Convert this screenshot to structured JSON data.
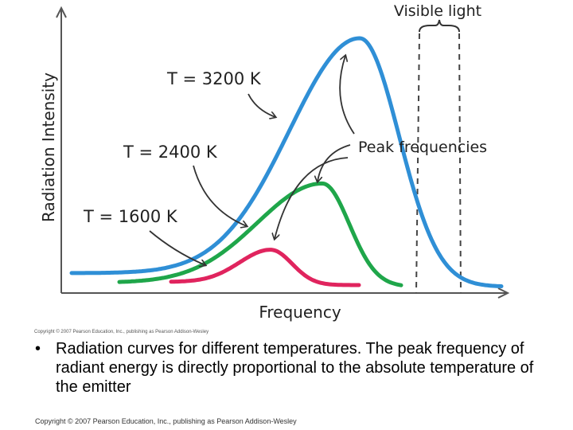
{
  "chart_data": {
    "type": "line",
    "title": "",
    "xlabel": "Frequency",
    "ylabel": "Radiation Intensity",
    "series": [
      {
        "name": "T = 3200 K",
        "color": "#2f8fd6",
        "peak": 1.0
      },
      {
        "name": "T = 2400 K",
        "color": "#1fa64a",
        "peak": 0.43
      },
      {
        "name": "T = 1600 K",
        "color": "#e0245e",
        "peak": 0.17
      }
    ],
    "annotations": {
      "visible_light": "Visible light",
      "peak_frequencies": "Peak frequencies"
    },
    "figure_copyright": "Copyright © 2007 Pearson Education, Inc., publishing as Pearson Addison-Wesley"
  },
  "caption": {
    "bullet": "•",
    "text": "Radiation curves for different temperatures.  The peak frequency of radiant energy is directly proportional to the absolute temperature of the emitter"
  },
  "footer": "Copyright © 2007 Pearson Education, Inc., publishing as Pearson Addison-Wesley"
}
